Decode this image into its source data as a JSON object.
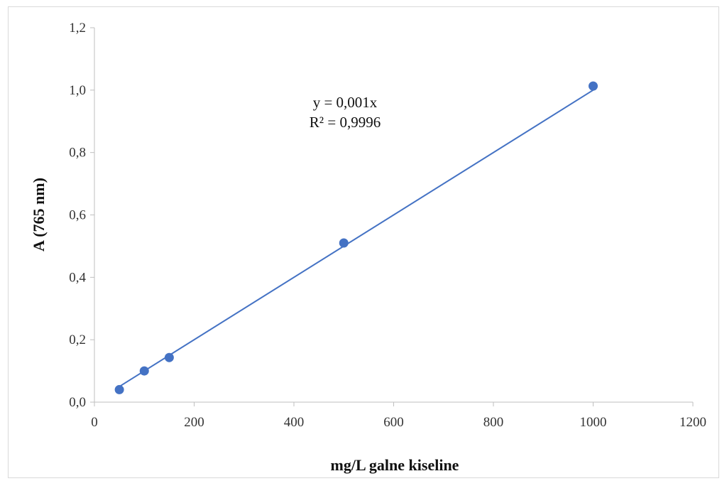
{
  "chart_data": {
    "type": "scatter",
    "xlabel": "mg/L galne kiseline",
    "ylabel": "A (765 nm)",
    "xlim": [
      0,
      1200
    ],
    "ylim": [
      0,
      1.2
    ],
    "xticks": [
      "0",
      "200",
      "400",
      "600",
      "800",
      "1000",
      "1200"
    ],
    "yticks": [
      "0,0",
      "0,2",
      "0,4",
      "0,6",
      "0,8",
      "1,0",
      "1,2"
    ],
    "grid": false,
    "legend": "none",
    "series": [
      {
        "points": [
          {
            "x": 50,
            "y": 0.04
          },
          {
            "x": 100,
            "y": 0.1
          },
          {
            "x": 150,
            "y": 0.143
          },
          {
            "x": 500,
            "y": 0.51
          },
          {
            "x": 1000,
            "y": 1.013
          }
        ],
        "color": "#4472C4"
      }
    ],
    "trendline": {
      "type": "linear",
      "slope": 0.001,
      "intercept": 0,
      "color": "#4472C4",
      "equation": "y = 0,001x",
      "r_squared": "R² = 0,9996"
    }
  }
}
